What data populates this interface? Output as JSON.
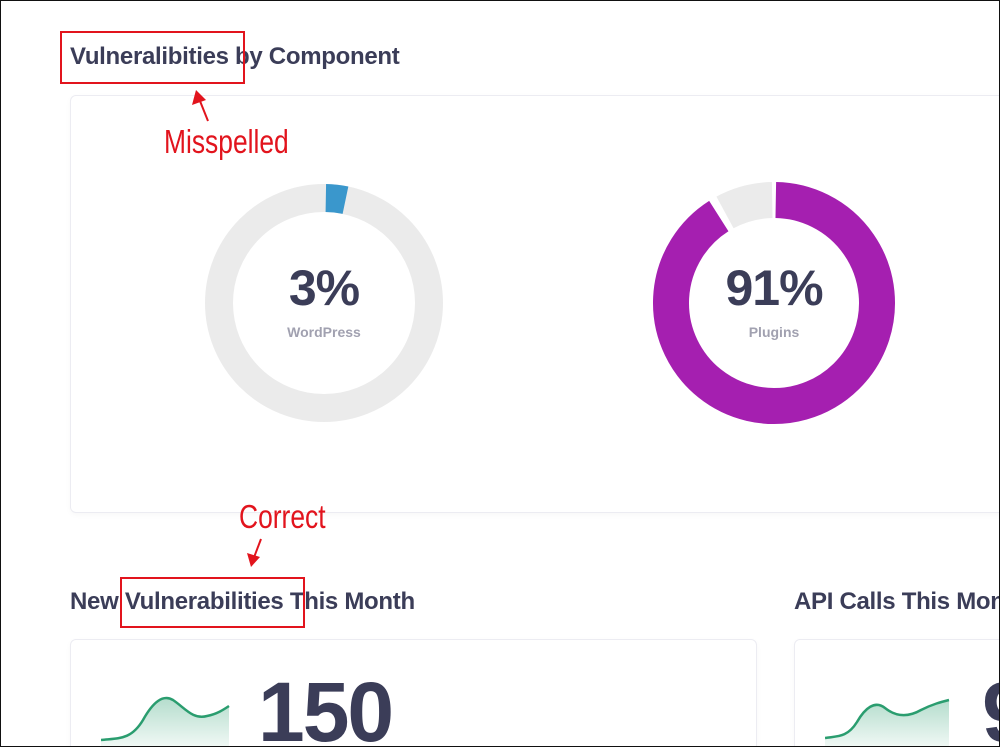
{
  "sections": {
    "component_title": "Vulneralibities by Component",
    "new_vuln_title": "New Vulnerabilities This Month",
    "api_title": "API Calls This Mon"
  },
  "donuts": {
    "wordpress": {
      "percent_label": "3%",
      "label": "WordPress",
      "fraction": 0.03,
      "color": "#3a97cc"
    },
    "plugins": {
      "percent_label": "91%",
      "label": "Plugins",
      "fraction": 0.91,
      "color": "#a51fb0"
    }
  },
  "stats": {
    "new_vulnerabilities": "150",
    "api_calls_partial": "9"
  },
  "annotations": {
    "misspelled": "Misspelled",
    "correct": "Correct"
  },
  "colors": {
    "track": "#ebebeb",
    "sparkline": "#2a9d6f",
    "annotation": "#e2141d"
  }
}
